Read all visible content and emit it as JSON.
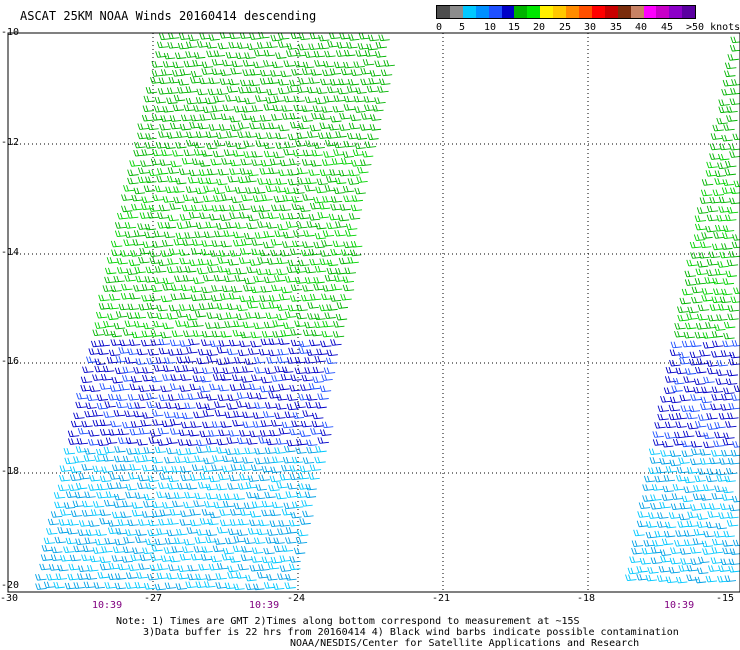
{
  "title": "ASCAT 25KM NOAA Winds 20160414 descending",
  "colorbar": {
    "swatches": [
      "#4d4d4d",
      "#8c8c8c",
      "#00c8ff",
      "#0090ff",
      "#1e50ff",
      "#0000c8",
      "#00b400",
      "#00e600",
      "#fff000",
      "#ffc800",
      "#ff8c00",
      "#ff5000",
      "#ff0000",
      "#c80000",
      "#7a2c0c",
      "#c88264",
      "#ff00ff",
      "#c800c8",
      "#8c00c8",
      "#5a00a0"
    ],
    "labels": [
      "0",
      "5",
      "10",
      "15",
      "20",
      "25",
      "30",
      "35",
      "40",
      "45",
      ">50 knots"
    ]
  },
  "lat_labels": [
    "-10",
    "-12",
    "-14",
    "-16",
    "-18",
    "-20"
  ],
  "lon_labels": [
    "-30",
    "-27",
    "-24",
    "-21",
    "-18",
    "-15"
  ],
  "times": [
    "10:39",
    "10:39",
    "10:39"
  ],
  "notes": {
    "line1": "Note: 1) Times are GMT 2)Times along bottom correspond to measurement at ~15S",
    "line2": "3)Data buffer is 22 hrs from 20160414 4) Black wind barbs indicate possible contamination",
    "line3": "NOAA/NESDIS/Center for Satellite Applications and Research"
  }
}
